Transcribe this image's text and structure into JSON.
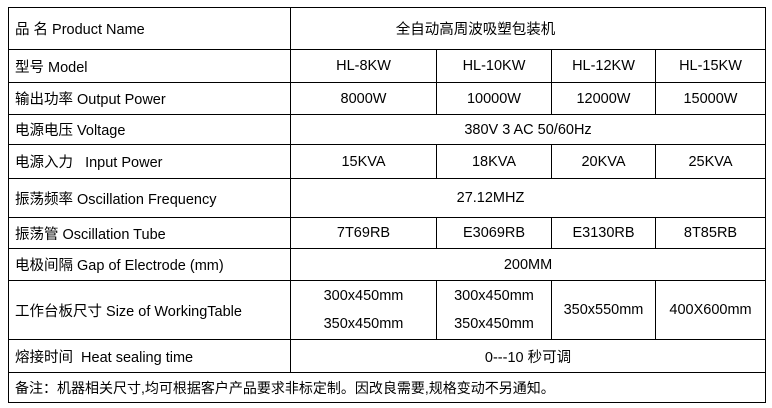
{
  "rows": {
    "product_name": {
      "label": "品  名 Product Name",
      "value": "全自动高周波吸塑包装机"
    },
    "model": {
      "label": "型号 Model",
      "values": [
        "HL-8KW",
        "HL-10KW",
        "HL-12KW",
        "HL-15KW"
      ]
    },
    "output_power": {
      "label": "输出功率 Output Power",
      "values": [
        "8000W",
        "10000W",
        "12000W",
        "15000W"
      ]
    },
    "voltage": {
      "label": "电源电压 Voltage",
      "value": "380V 3 AC 50/60Hz"
    },
    "input_power": {
      "label": "电源入力   Input Power",
      "values": [
        "15KVA",
        "18KVA",
        "20KVA",
        "25KVA"
      ]
    },
    "oscillation_frequency": {
      "label": "振荡频率 Oscillation Frequency",
      "value": "27.12MHZ"
    },
    "oscillation_tube": {
      "label": "振荡管 Oscillation Tube",
      "values": [
        "7T69RB",
        "E3069RB",
        "E3130RB",
        "8T85RB"
      ]
    },
    "electrode_gap": {
      "label": "电极间隔 Gap of Electrode (mm)",
      "value": "200MM"
    },
    "working_table": {
      "label": "工作台板尺寸 Size of WorkingTable",
      "values": [
        [
          "300x450mm",
          "350x450mm"
        ],
        [
          "300x450mm",
          "350x450mm"
        ],
        [
          "350x550mm"
        ],
        [
          "400X600mm"
        ]
      ]
    },
    "heat_sealing_time": {
      "label": "熔接时间  Heat sealing time",
      "value": "0---10 秒可调"
    }
  },
  "note": "备注：机器相关尺寸,均可根据客户产品要求非标定制。因改良需要,规格变动不另通知。"
}
